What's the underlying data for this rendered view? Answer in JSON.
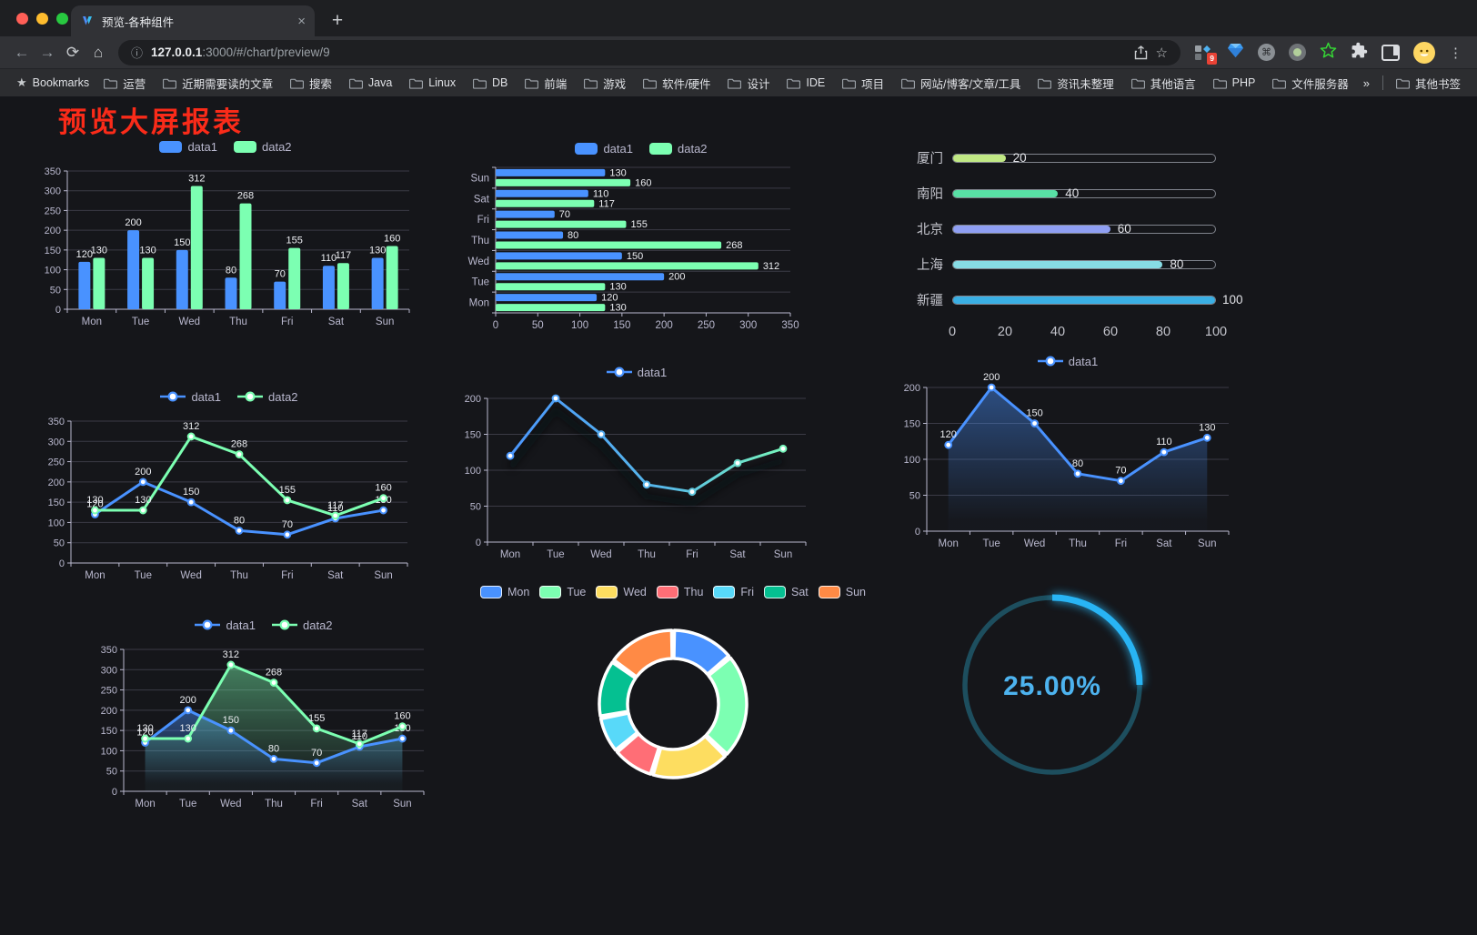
{
  "browser": {
    "tab_title": "预览-各种组件",
    "close": "×",
    "new_tab": "+",
    "url_host": "127.0.0.1",
    "url_rest": ":3000/#/chart/preview/9",
    "ext_badge": "9",
    "menu_dots": "⋮"
  },
  "bookmarks": {
    "root_label": "Bookmarks",
    "items": [
      "运营",
      "近期需要读的文章",
      "搜索",
      "Java",
      "Linux",
      "DB",
      "前端",
      "游戏",
      "软件/硬件",
      "设计",
      "IDE",
      "项目",
      "网站/博客/文章/工具",
      "资讯未整理",
      "其他语言",
      "PHP",
      "文件服务器"
    ],
    "overflow": "»",
    "other_label": "其他书签"
  },
  "page": {
    "title": "预览大屏报表"
  },
  "palette": {
    "blue": "#4992ff",
    "green": "#7cffb2",
    "yellow": "#fddd60",
    "red": "#ff6e76",
    "cyan": "#58d9f9",
    "teal": "#05c091",
    "orange": "#ff8a45",
    "axis_text": "#b9b8ce",
    "grid_line": "#3b3b46",
    "page_bg": "#15161a",
    "title_red": "#fa2b19"
  },
  "chart_data": [
    {
      "type": "bar",
      "categories": [
        "Mon",
        "Tue",
        "Wed",
        "Thu",
        "Fri",
        "Sat",
        "Sun"
      ],
      "series": [
        {
          "name": "data1",
          "color": "#4992ff",
          "values": [
            120,
            200,
            150,
            80,
            70,
            110,
            130
          ]
        },
        {
          "name": "data2",
          "color": "#7cffb2",
          "values": [
            130,
            130,
            312,
            268,
            155,
            117,
            160
          ]
        }
      ],
      "ylim": [
        0,
        350
      ],
      "ytick_step": 50,
      "legend_position": "top",
      "grid": true
    },
    {
      "type": "hbar",
      "categories": [
        "Mon",
        "Tue",
        "Wed",
        "Thu",
        "Fri",
        "Sat",
        "Sun"
      ],
      "series": [
        {
          "name": "data1",
          "color": "#4992ff",
          "values": [
            120,
            200,
            150,
            80,
            70,
            110,
            130
          ]
        },
        {
          "name": "data2",
          "color": "#7cffb2",
          "values": [
            130,
            130,
            312,
            268,
            155,
            117,
            160
          ]
        }
      ],
      "xlim": [
        0,
        350
      ],
      "xtick_step": 50,
      "legend_position": "top"
    },
    {
      "type": "progress",
      "items": [
        {
          "label": "厦门",
          "value": 20,
          "color": "#c0e884"
        },
        {
          "label": "南阳",
          "value": 40,
          "color": "#58e0a5"
        },
        {
          "label": "北京",
          "value": 60,
          "color": "#8f9ff3"
        },
        {
          "label": "上海",
          "value": 80,
          "color": "#87dce5"
        },
        {
          "label": "新疆",
          "value": 100,
          "color": "#3aafe4"
        }
      ],
      "xlim": [
        0,
        100
      ],
      "xticks": [
        0,
        20,
        40,
        60,
        80,
        100
      ]
    },
    {
      "type": "line",
      "categories": [
        "Mon",
        "Tue",
        "Wed",
        "Thu",
        "Fri",
        "Sat",
        "Sun"
      ],
      "series": [
        {
          "name": "data1",
          "color": "#4992ff",
          "values": [
            120,
            200,
            150,
            80,
            70,
            110,
            130
          ]
        },
        {
          "name": "data2",
          "color": "#7cffb2",
          "values": [
            130,
            130,
            312,
            268,
            155,
            117,
            160
          ]
        }
      ],
      "ylim": [
        0,
        350
      ],
      "ytick_step": 50,
      "point_labels": true
    },
    {
      "type": "line",
      "variant": "gradient",
      "categories": [
        "Mon",
        "Tue",
        "Wed",
        "Thu",
        "Fri",
        "Sat",
        "Sun"
      ],
      "series": [
        {
          "name": "data1",
          "color": "#4992ff",
          "values": [
            120,
            200,
            150,
            80,
            70,
            110,
            130
          ]
        }
      ],
      "gradient": [
        "#4992ff",
        "#57b8e9",
        "#7cffb2"
      ],
      "ylim": [
        0,
        200
      ],
      "ytick_step": 50,
      "point_labels": false
    },
    {
      "type": "line",
      "variant": "area",
      "categories": [
        "Mon",
        "Tue",
        "Wed",
        "Thu",
        "Fri",
        "Sat",
        "Sun"
      ],
      "series": [
        {
          "name": "data1",
          "color": "#4992ff",
          "values": [
            120,
            200,
            150,
            80,
            70,
            110,
            130
          ]
        }
      ],
      "ylim": [
        0,
        200
      ],
      "ytick_step": 50,
      "point_labels": true
    },
    {
      "type": "line",
      "variant": "area",
      "categories": [
        "Mon",
        "Tue",
        "Wed",
        "Thu",
        "Fri",
        "Sat",
        "Sun"
      ],
      "series": [
        {
          "name": "data1",
          "color": "#4992ff",
          "values": [
            120,
            200,
            150,
            80,
            70,
            110,
            130
          ]
        },
        {
          "name": "data2",
          "color": "#7cffb2",
          "values": [
            130,
            130,
            312,
            268,
            155,
            117,
            160
          ]
        }
      ],
      "ylim": [
        0,
        350
      ],
      "ytick_step": 50,
      "point_labels": true
    },
    {
      "type": "pie",
      "labels": [
        "Mon",
        "Tue",
        "Wed",
        "Thu",
        "Fri",
        "Sat",
        "Sun"
      ],
      "values": [
        120,
        200,
        150,
        80,
        70,
        110,
        130
      ],
      "colors": [
        "#4992ff",
        "#7cffb2",
        "#fddd60",
        "#ff6e76",
        "#58d9f9",
        "#05c091",
        "#ff8a45"
      ],
      "border_color": "#ffffff",
      "donut": true
    },
    {
      "type": "gauge",
      "value": 25,
      "label": "25.00%",
      "track_color": "#1d4e5e",
      "progress_color": "#28b4f4",
      "text_color": "#4db3ef"
    }
  ]
}
